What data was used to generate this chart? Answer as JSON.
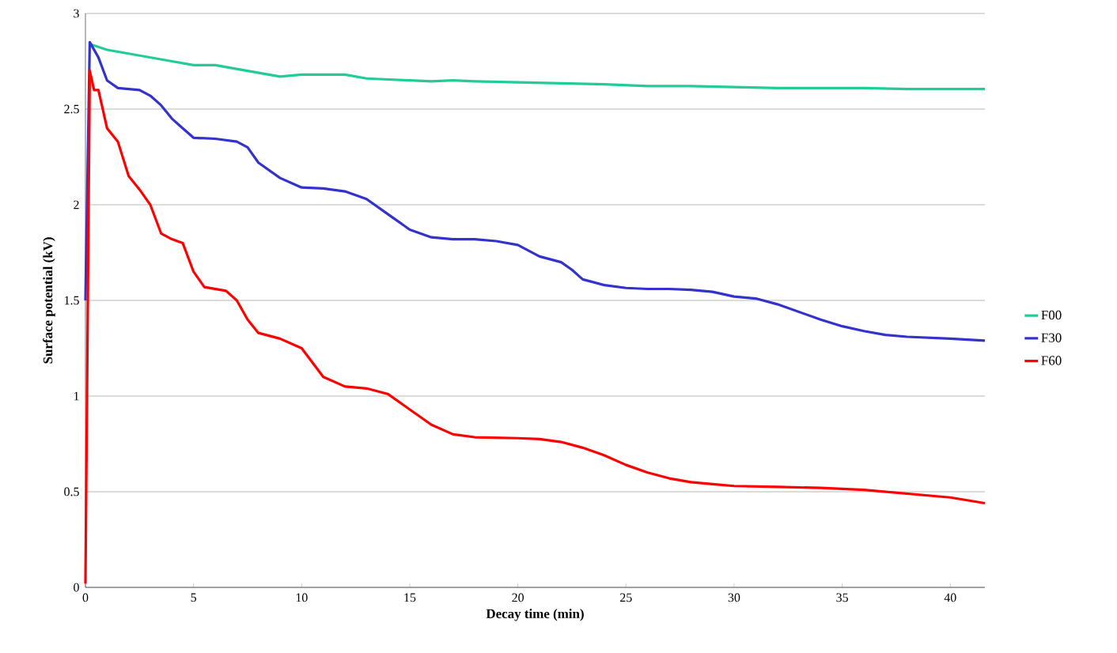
{
  "chart_data": {
    "type": "line",
    "xlabel": "Decay time (min)",
    "ylabel": "Surface potential (kV)",
    "xlim": [
      0,
      41.6
    ],
    "xticks": [
      0,
      5,
      10,
      15,
      20,
      25,
      30,
      35,
      40
    ],
    "ylim": [
      0,
      3
    ],
    "yticks": [
      0,
      0.5,
      1,
      1.5,
      2,
      2.5,
      3
    ],
    "grid": "y",
    "legend": "right",
    "marker": "none",
    "line_style": "solid",
    "series": [
      {
        "name": "F00",
        "color": "#22cc99",
        "x": [
          0.2,
          1,
          2,
          3,
          4,
          5,
          6,
          7,
          8,
          9,
          10,
          11,
          12,
          13,
          14,
          15,
          16,
          17,
          18,
          20,
          22,
          24,
          26,
          28,
          30,
          32,
          34,
          36,
          38,
          40,
          41.6
        ],
        "values": [
          2.84,
          2.81,
          2.79,
          2.77,
          2.75,
          2.73,
          2.73,
          2.71,
          2.69,
          2.67,
          2.68,
          2.68,
          2.68,
          2.66,
          2.655,
          2.65,
          2.645,
          2.65,
          2.645,
          2.64,
          2.635,
          2.63,
          2.62,
          2.62,
          2.615,
          2.61,
          2.61,
          2.61,
          2.605,
          2.605,
          2.605
        ]
      },
      {
        "name": "F30",
        "color": "#3333cc",
        "x": [
          0,
          0.2,
          0.6,
          1,
          1.5,
          2.5,
          3,
          3.5,
          4,
          4.5,
          5,
          6,
          7,
          7.5,
          8,
          9,
          10,
          11,
          12,
          13,
          14,
          15,
          16,
          17,
          18,
          19,
          20,
          21,
          22,
          22.5,
          23,
          24,
          25,
          26,
          27,
          28,
          29,
          30,
          31,
          32,
          33,
          34,
          35,
          36,
          37,
          38,
          39,
          40,
          41.6
        ],
        "values": [
          1.5,
          2.85,
          2.77,
          2.65,
          2.61,
          2.6,
          2.57,
          2.52,
          2.45,
          2.4,
          2.35,
          2.345,
          2.33,
          2.3,
          2.22,
          2.14,
          2.09,
          2.085,
          2.07,
          2.03,
          1.95,
          1.87,
          1.83,
          1.82,
          1.82,
          1.81,
          1.79,
          1.73,
          1.7,
          1.66,
          1.61,
          1.58,
          1.565,
          1.56,
          1.56,
          1.555,
          1.545,
          1.52,
          1.51,
          1.48,
          1.44,
          1.4,
          1.365,
          1.34,
          1.32,
          1.31,
          1.305,
          1.3,
          1.29
        ]
      },
      {
        "name": "F60",
        "color": "#ff0000",
        "x": [
          0,
          0.2,
          0.4,
          0.6,
          1,
          1.5,
          2,
          2.5,
          3,
          3.5,
          4,
          4.5,
          5,
          5.5,
          6.5,
          7,
          7.5,
          8,
          9,
          10,
          11,
          12,
          13,
          14,
          15,
          16,
          17,
          18,
          20,
          21,
          22,
          23,
          24,
          25,
          26,
          27,
          28,
          29,
          30,
          32,
          34,
          36,
          38,
          40,
          41.6
        ],
        "values": [
          0.02,
          2.7,
          2.6,
          2.6,
          2.4,
          2.33,
          2.15,
          2.08,
          2.0,
          1.85,
          1.82,
          1.8,
          1.65,
          1.57,
          1.55,
          1.5,
          1.4,
          1.33,
          1.3,
          1.25,
          1.1,
          1.05,
          1.04,
          1.01,
          0.93,
          0.85,
          0.8,
          0.785,
          0.78,
          0.775,
          0.76,
          0.73,
          0.69,
          0.64,
          0.6,
          0.57,
          0.55,
          0.54,
          0.53,
          0.525,
          0.52,
          0.51,
          0.49,
          0.47,
          0.44
        ]
      }
    ]
  }
}
